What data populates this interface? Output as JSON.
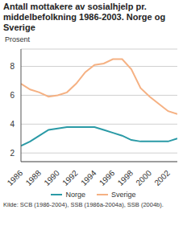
{
  "chart_data": {
    "type": "line",
    "title": "Antall mottakere av sosialhjelp pr. middelbefolkning 1986-2003. Norge og Sverige",
    "y_label": "Prosent",
    "source": "Kilde: SCB (1986-2004), SSB (1986a-2004a), SSB (2004b).",
    "x": [
      1986,
      1987,
      1988,
      1989,
      1990,
      1991,
      1992,
      1993,
      1994,
      1995,
      1996,
      1997,
      1998,
      1999,
      2000,
      2001,
      2002,
      2003
    ],
    "series": [
      {
        "name": "Norge",
        "color": "#2a9aa6",
        "values": [
          2.5,
          2.8,
          3.2,
          3.6,
          3.7,
          3.8,
          3.8,
          3.8,
          3.8,
          3.6,
          3.4,
          3.2,
          2.9,
          2.8,
          2.8,
          2.8,
          2.8,
          3.0
        ]
      },
      {
        "name": "Sverige",
        "color": "#f5b183",
        "values": [
          6.8,
          6.4,
          6.2,
          5.9,
          6.0,
          6.2,
          6.8,
          7.6,
          8.1,
          8.2,
          8.5,
          8.5,
          7.8,
          6.5,
          5.9,
          5.4,
          4.9,
          4.7
        ]
      }
    ],
    "xlim": [
      1986,
      2003
    ],
    "xticks": [
      1986,
      1988,
      1990,
      1992,
      1994,
      1996,
      1998,
      2000,
      2002
    ],
    "ylim": [
      1.4,
      9.2
    ],
    "yticks": [
      2,
      4,
      6,
      8
    ],
    "grid": true,
    "legend": "bottom"
  }
}
